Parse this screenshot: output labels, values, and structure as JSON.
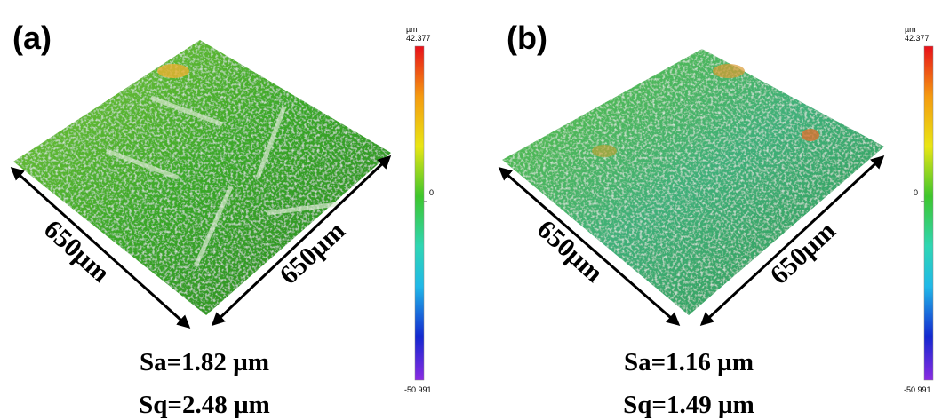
{
  "panels": [
    {
      "label": "(a)",
      "dim_left": "650µm",
      "dim_right": "650µm",
      "sa": "Sa=1.82 µm",
      "sq": "Sq=2.48 µm",
      "colorbar": {
        "unit": "µm",
        "max": "42.377",
        "mid": "0",
        "min": "-50.991"
      }
    },
    {
      "label": "(b)",
      "dim_left": "650µm",
      "dim_right": "650µm",
      "sa": "Sa=1.16 µm",
      "sq": "Sq=1.49 µm",
      "colorbar": {
        "unit": "µm",
        "max": "42.377",
        "mid": "0",
        "min": "-50.991"
      }
    }
  ]
}
